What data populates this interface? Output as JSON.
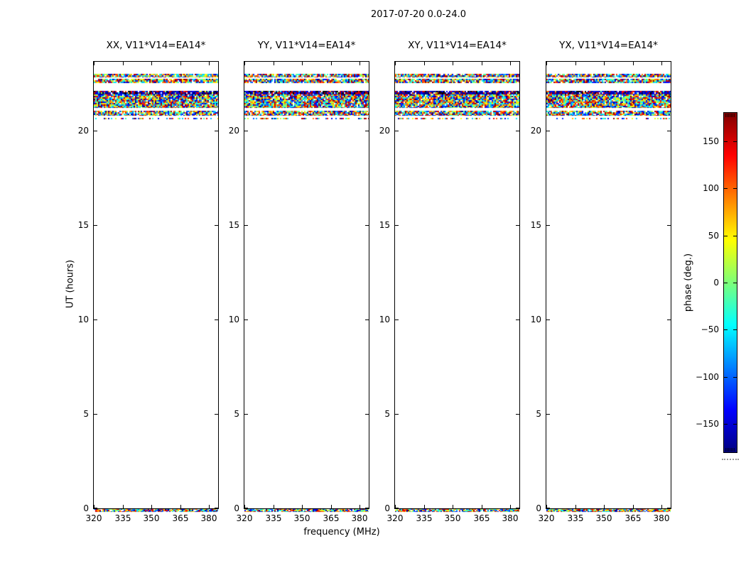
{
  "figure": {
    "title": "2017-07-20 0.0-24.0",
    "background": "#ffffff"
  },
  "panels": [
    {
      "title": "XX, V11*V14=EA14*"
    },
    {
      "title": "YY, V11*V14=EA14*"
    },
    {
      "title": "XY, V11*V14=EA14*"
    },
    {
      "title": "YX, V11*V14=EA14*"
    }
  ],
  "x_axis": {
    "label": "frequency (MHz)",
    "tick_labels": [
      "320",
      "335",
      "350",
      "365",
      "380"
    ],
    "tick_values": [
      320,
      335,
      350,
      365,
      380
    ],
    "range": [
      320,
      384.7
    ]
  },
  "y_axis": {
    "label": "UT (hours)",
    "tick_labels": [
      "0",
      "5",
      "10",
      "15",
      "20"
    ],
    "tick_values": [
      0,
      5,
      10,
      15,
      20
    ],
    "range": [
      0,
      23.66
    ]
  },
  "colorbar": {
    "label": "phase (deg.)",
    "tick_labels": [
      "150",
      "100",
      "50",
      "0",
      "−50",
      "−100",
      "−150"
    ],
    "tick_values": [
      150,
      100,
      50,
      0,
      -50,
      -100,
      -150
    ],
    "range": [
      -180,
      180
    ],
    "colormap": "jet",
    "stops": [
      [
        "#000080",
        0.0
      ],
      [
        "#0000ff",
        0.125
      ],
      [
        "#00ffff",
        0.375
      ],
      [
        "#7cff79",
        0.5
      ],
      [
        "#ffff00",
        0.625
      ],
      [
        "#ff0000",
        0.875
      ],
      [
        "#800000",
        1.0
      ]
    ]
  },
  "chart_data": {
    "type": "heatmap",
    "title": "2017-07-20 0.0-24.0",
    "xlabel": "frequency (MHz)",
    "ylabel": "UT (hours)",
    "value_label": "phase (deg.)",
    "value_range": [
      -180,
      180
    ],
    "xlim": [
      320,
      384.7
    ],
    "ylim": [
      0,
      23.66
    ],
    "panels": [
      "XX, V11*V14=EA14*",
      "YY, V11*V14=EA14*",
      "XY, V11*V14=EA14*",
      "YX, V11*V14=EA14*"
    ],
    "bands": [
      {
        "ut_start": 22.82,
        "ut_end": 23.01,
        "density": 0.92,
        "style": "normal"
      },
      {
        "ut_start": 22.55,
        "ut_end": 22.76,
        "density": 0.92,
        "style": "normal"
      },
      {
        "ut_start": 21.92,
        "ut_end": 22.12,
        "density": 0.95,
        "style": "dark"
      },
      {
        "ut_start": 21.2,
        "ut_end": 21.92,
        "density": 0.95,
        "style": "normal"
      },
      {
        "ut_start": 20.8,
        "ut_end": 21.06,
        "density": 0.9,
        "style": "normal"
      },
      {
        "ut_start": 20.6,
        "ut_end": 20.7,
        "density": 0.45,
        "style": "sparse"
      },
      {
        "ut_start": -0.18,
        "ut_end": 0.0,
        "density": 0.9,
        "style": "normal"
      }
    ]
  }
}
